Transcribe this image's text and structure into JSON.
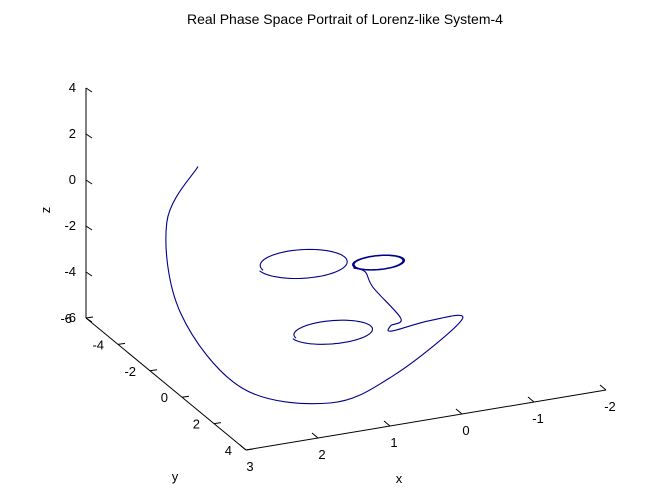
{
  "chart_data": {
    "type": "line",
    "projection": "3d",
    "title": "Real Phase Space Portrait of Lorenz-like System-4",
    "xlabel": "x",
    "ylabel": "y",
    "zlabel": "z",
    "xlim": [
      -2,
      3
    ],
    "ylim": [
      -6,
      4
    ],
    "zlim": [
      -6,
      4
    ],
    "x_ticks": [
      "3",
      "2",
      "1",
      "0",
      "-1",
      "-2"
    ],
    "y_ticks": [
      "-6",
      "-4",
      "-2",
      "0",
      "2",
      "4"
    ],
    "z_ticks": [
      "-6",
      "-4",
      "-2",
      "0",
      "2",
      "4"
    ],
    "grid": false,
    "line_color": "#00008b",
    "series": [
      {
        "points": [
          [
            2.0,
            -3.5,
            1.5
          ],
          [
            2.5,
            -3.2,
            -0.5
          ],
          [
            2.8,
            -1.0,
            -3.0
          ],
          [
            2.5,
            1.5,
            -5.0
          ],
          [
            1.5,
            2.5,
            -5.6
          ],
          [
            0.5,
            2.0,
            -5.2
          ],
          [
            -1.0,
            -0.5,
            -5.0
          ],
          [
            -0.5,
            -0.2,
            -4.6
          ],
          [
            0.2,
            0.5,
            -4.3
          ],
          [
            0.1,
            0.0,
            -4.4
          ],
          [
            -0.15,
            -0.5,
            -4.5
          ],
          [
            -0.1,
            -2.0,
            -4.0
          ],
          [
            -0.1,
            -2.5,
            -3.6
          ],
          [
            -0.05,
            -3.0,
            -3.7
          ]
        ]
      }
    ],
    "loops": [
      {
        "center": [
          0.7,
          -2.8,
          -3.0
        ],
        "rx": 0.6,
        "ry": 0.25,
        "turns": 1
      },
      {
        "center": [
          -0.35,
          -2.8,
          -3.5
        ],
        "rx": 0.35,
        "ry": 0.12,
        "turns": 4
      },
      {
        "center": [
          0.8,
          -0.5,
          -4.6
        ],
        "rx": 0.55,
        "ry": 0.2,
        "turns": 1
      }
    ]
  }
}
